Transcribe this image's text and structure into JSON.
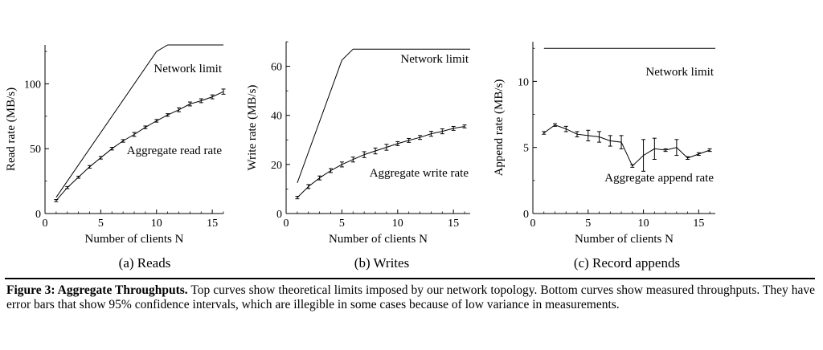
{
  "charts": [
    {
      "id": "a",
      "subcaption": "(a) Reads",
      "chart_data": {
        "type": "line",
        "xlabel": "Number of clients N",
        "ylabel": "Read rate (MB/s)",
        "xlim": [
          0,
          16
        ],
        "ylim": [
          0,
          130
        ],
        "xticks": [
          0,
          5,
          10,
          15
        ],
        "yticks": [
          0,
          50,
          100
        ],
        "grid": false,
        "series": [
          {
            "name": "Network limit",
            "style": "solid",
            "points": [
              [
                1,
                12.5
              ],
              [
                10,
                125
              ],
              [
                11,
                130
              ],
              [
                16,
                130
              ]
            ]
          },
          {
            "name": "Aggregate read rate",
            "style": "errorbars",
            "points": [
              [
                1,
                10
              ],
              [
                2,
                20
              ],
              [
                3,
                28
              ],
              [
                4,
                36
              ],
              [
                5,
                43
              ],
              [
                6,
                50
              ],
              [
                7,
                56
              ],
              [
                8,
                61
              ],
              [
                9,
                66.5
              ],
              [
                10,
                71.5
              ],
              [
                11,
                76
              ],
              [
                12,
                80
              ],
              [
                13,
                84.5
              ],
              [
                14,
                87
              ],
              [
                15,
                90
              ],
              [
                16,
                94
              ]
            ],
            "errors": [
              0.8,
              0.8,
              0.8,
              1,
              1,
              1,
              1,
              1.5,
              1,
              1,
              1,
              1.5,
              1.5,
              1.5,
              1.5,
              2
            ]
          }
        ]
      }
    },
    {
      "id": "b",
      "subcaption": "(b) Writes",
      "chart_data": {
        "type": "line",
        "xlabel": "Number of clients N",
        "ylabel": "Write rate (MB/s)",
        "xlim": [
          0,
          16.5
        ],
        "ylim": [
          0,
          70
        ],
        "xticks": [
          0,
          5,
          10,
          15
        ],
        "yticks": [
          0,
          20,
          40,
          60
        ],
        "grid": false,
        "series": [
          {
            "name": "Network limit",
            "style": "solid",
            "points": [
              [
                1,
                12.5
              ],
              [
                5,
                62.5
              ],
              [
                6,
                67
              ],
              [
                16.5,
                67
              ]
            ]
          },
          {
            "name": "Aggregate write rate",
            "style": "errorbars",
            "points": [
              [
                1,
                6.5
              ],
              [
                2,
                11
              ],
              [
                3,
                14.5
              ],
              [
                4,
                17.5
              ],
              [
                5,
                20
              ],
              [
                6,
                22
              ],
              [
                7,
                24
              ],
              [
                8,
                25.5
              ],
              [
                9,
                27
              ],
              [
                10,
                28.5
              ],
              [
                11,
                29.8
              ],
              [
                12,
                31
              ],
              [
                13,
                32.5
              ],
              [
                14,
                33.5
              ],
              [
                15,
                34.7
              ],
              [
                16,
                35.5
              ]
            ],
            "errors": [
              0.5,
              0.8,
              0.8,
              0.8,
              1,
              1,
              1.2,
              1.2,
              1.2,
              0.8,
              0.8,
              0.8,
              1,
              1,
              0.8,
              0.6
            ]
          }
        ]
      }
    },
    {
      "id": "c",
      "subcaption": "(c) Record appends",
      "chart_data": {
        "type": "line",
        "xlabel": "Number of clients N",
        "ylabel": "Append rate (MB/s)",
        "xlim": [
          0,
          16.5
        ],
        "ylim": [
          0,
          13
        ],
        "xticks": [
          0,
          5,
          10,
          15
        ],
        "yticks": [
          0,
          5,
          10
        ],
        "grid": false,
        "series": [
          {
            "name": "Network limit",
            "style": "solid",
            "points": [
              [
                1,
                12.5
              ],
              [
                16.5,
                12.5
              ]
            ]
          },
          {
            "name": "Aggregate append rate",
            "style": "errorbars",
            "points": [
              [
                1,
                6.1
              ],
              [
                2,
                6.7
              ],
              [
                3,
                6.4
              ],
              [
                4,
                6.0
              ],
              [
                5,
                5.9
              ],
              [
                6,
                5.8
              ],
              [
                7,
                5.5
              ],
              [
                8,
                5.4
              ],
              [
                9,
                3.6
              ],
              [
                10,
                4.4
              ],
              [
                11,
                4.9
              ],
              [
                12,
                4.8
              ],
              [
                13,
                5.0
              ],
              [
                14,
                4.2
              ],
              [
                15,
                4.5
              ],
              [
                16,
                4.8
              ]
            ],
            "errors": [
              0.1,
              0.1,
              0.2,
              0.2,
              0.4,
              0.4,
              0.4,
              0.5,
              0.1,
              1.2,
              0.8,
              0.1,
              0.6,
              0.1,
              0.1,
              0.1
            ]
          }
        ]
      }
    }
  ],
  "caption": {
    "figure_label": "Figure 3: Aggregate Throughputs.",
    "text": "Top curves show theoretical limits imposed by our network topology. Bottom curves show measured throughputs. They have error bars that show 95% confidence intervals, which are illegible in some cases because of low variance in measurements."
  }
}
